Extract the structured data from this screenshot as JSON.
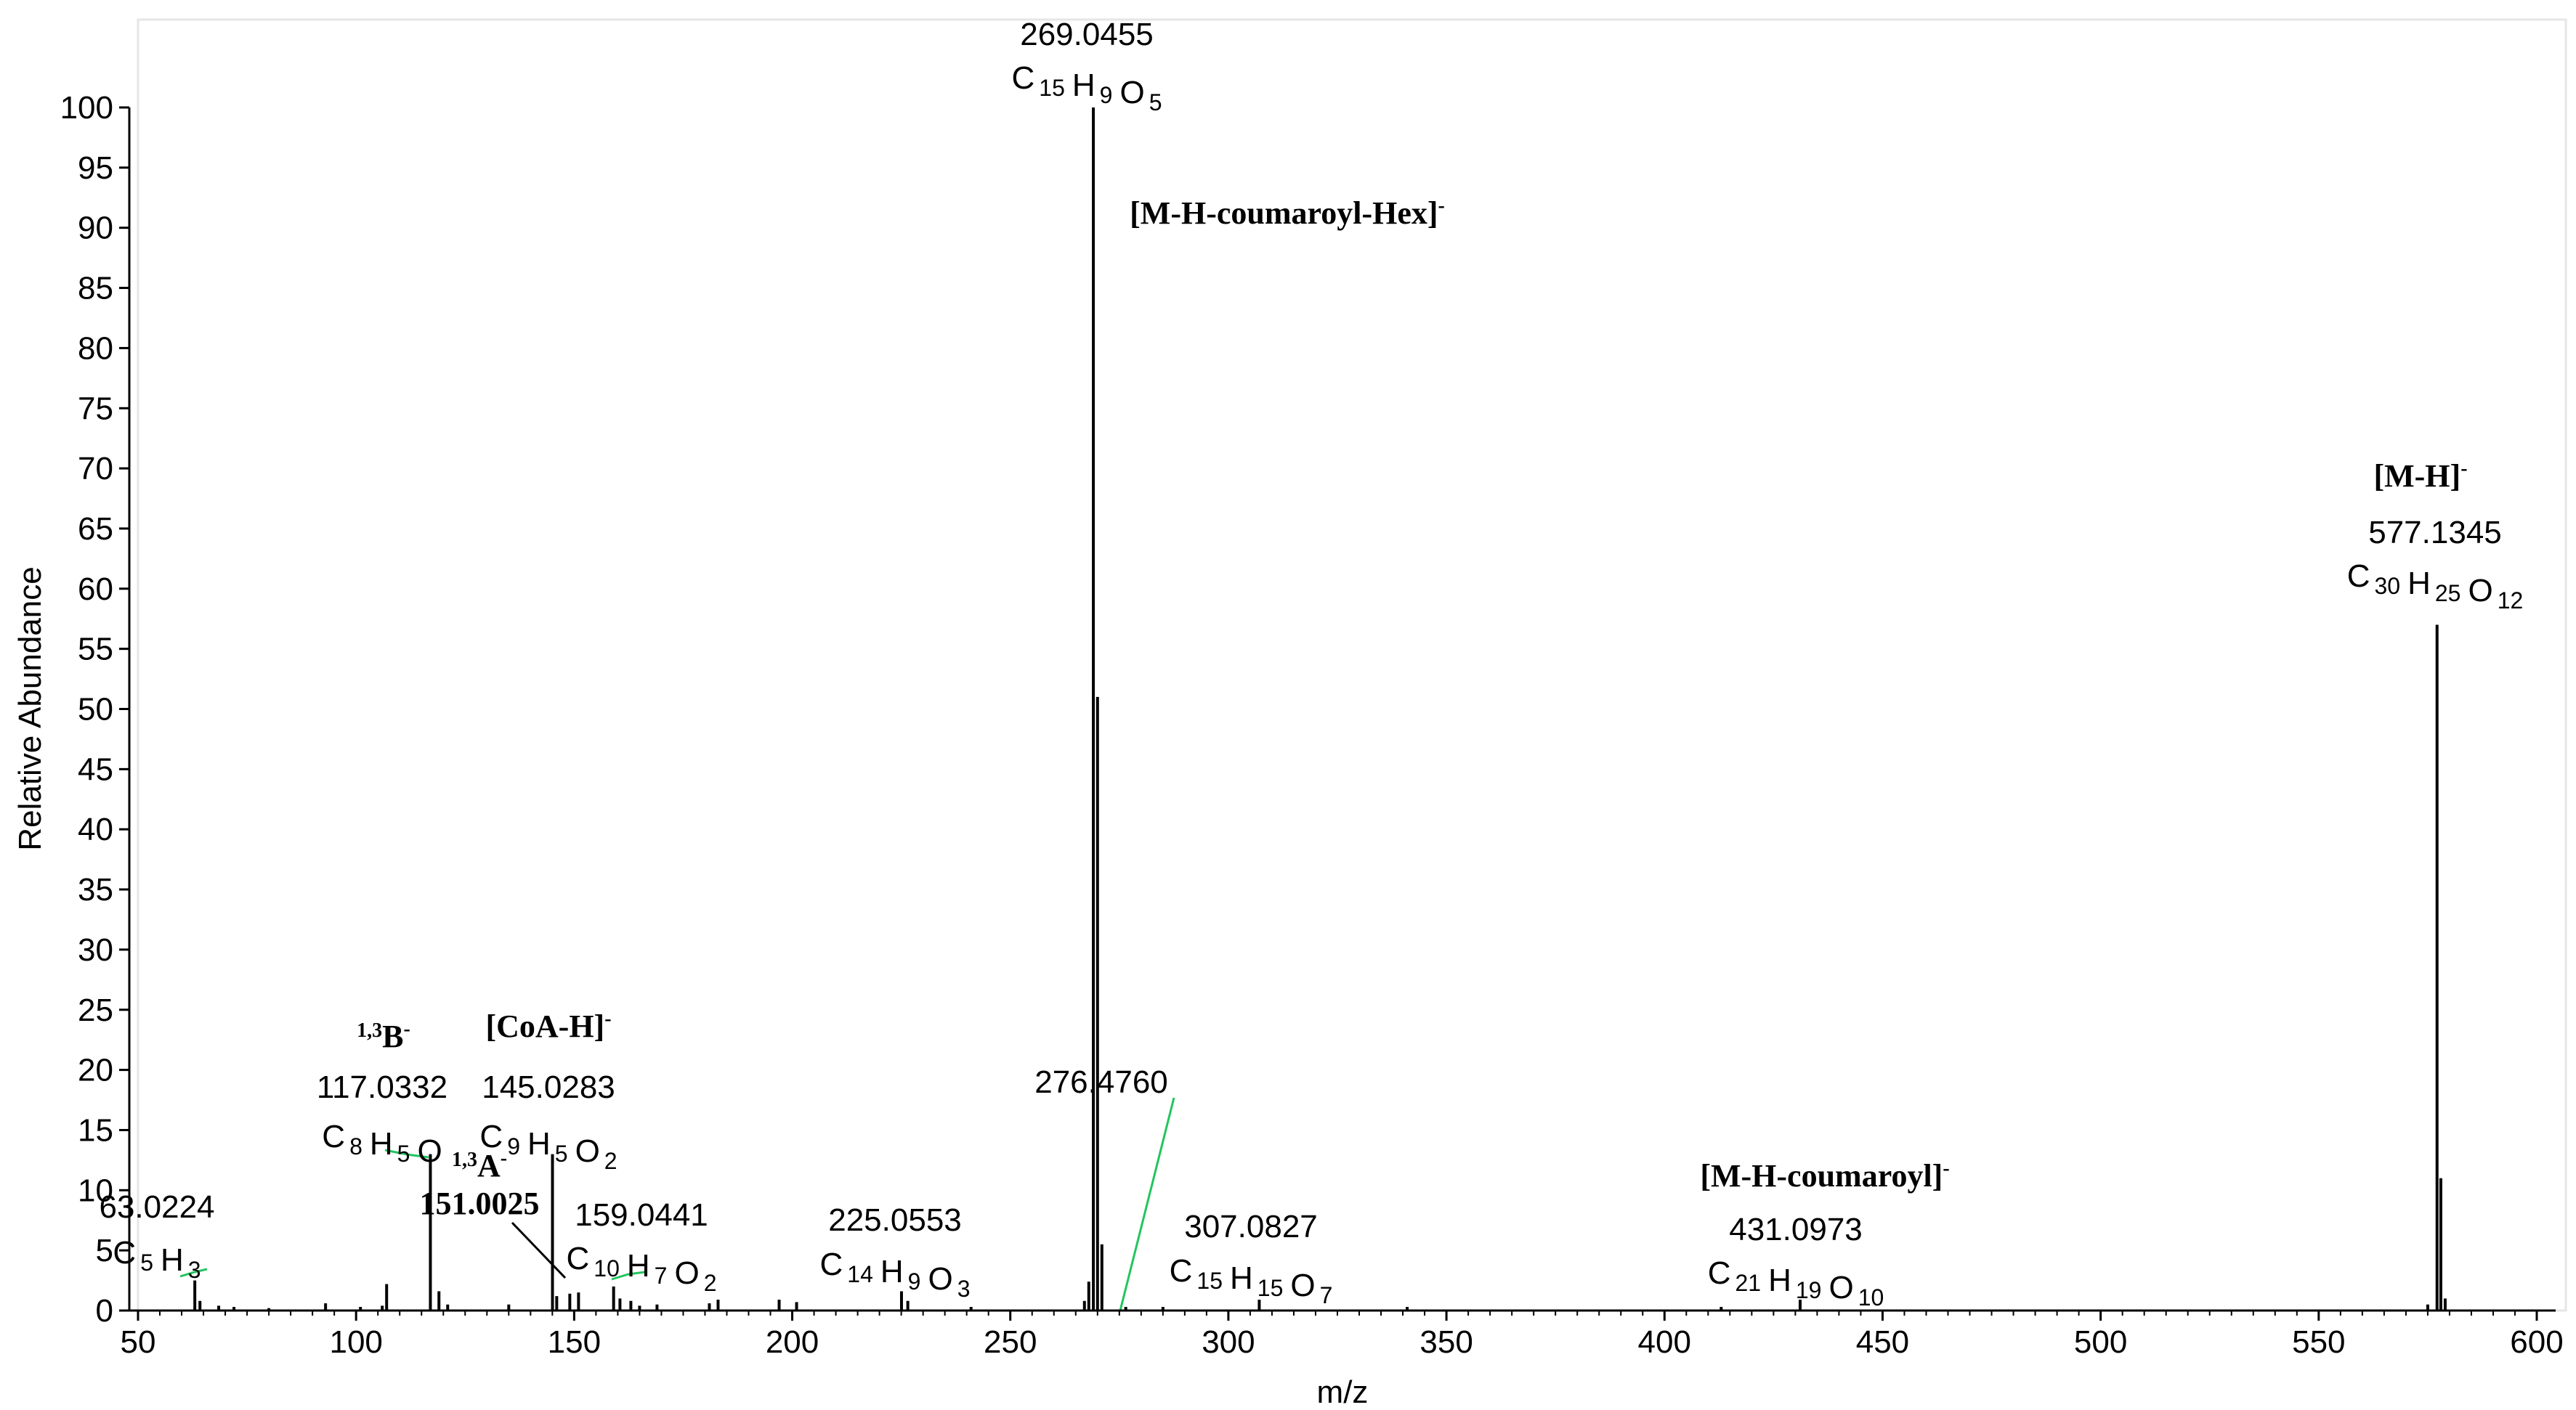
{
  "chart_data": {
    "type": "bar",
    "xlabel": "m/z",
    "ylabel": "Relative Abundance",
    "xlim": [
      50,
      605
    ],
    "ylim": [
      0,
      100
    ],
    "xticks": [
      50,
      100,
      150,
      200,
      250,
      300,
      350,
      400,
      450,
      500,
      550,
      600
    ],
    "yticks": [
      0,
      5,
      10,
      15,
      20,
      25,
      30,
      35,
      40,
      45,
      50,
      55,
      60,
      65,
      70,
      75,
      80,
      85,
      90,
      95,
      100
    ],
    "grid": false,
    "colors": {
      "peaks": "#000000",
      "leader_lines": "#22c55e"
    },
    "peaks": [
      {
        "mz": 63.0224,
        "abundance": 2.5
      },
      {
        "mz": 64.2,
        "abundance": 0.8
      },
      {
        "mz": 68.5,
        "abundance": 0.4
      },
      {
        "mz": 72.0,
        "abundance": 0.3
      },
      {
        "mz": 80.0,
        "abundance": 0.2
      },
      {
        "mz": 93.0,
        "abundance": 0.6
      },
      {
        "mz": 101.0,
        "abundance": 0.3
      },
      {
        "mz": 106.0,
        "abundance": 0.4
      },
      {
        "mz": 107.0,
        "abundance": 2.2
      },
      {
        "mz": 117.0332,
        "abundance": 13.0
      },
      {
        "mz": 119.0,
        "abundance": 1.6
      },
      {
        "mz": 121.0,
        "abundance": 0.5
      },
      {
        "mz": 135.0,
        "abundance": 0.5
      },
      {
        "mz": 145.0283,
        "abundance": 13.0
      },
      {
        "mz": 146.0,
        "abundance": 1.2
      },
      {
        "mz": 149.0,
        "abundance": 1.4
      },
      {
        "mz": 151.0025,
        "abundance": 1.5
      },
      {
        "mz": 159.0441,
        "abundance": 2.0
      },
      {
        "mz": 160.5,
        "abundance": 1.0
      },
      {
        "mz": 163.0,
        "abundance": 0.8
      },
      {
        "mz": 165.0,
        "abundance": 0.4
      },
      {
        "mz": 169.0,
        "abundance": 0.5
      },
      {
        "mz": 181.0,
        "abundance": 0.6
      },
      {
        "mz": 183.0,
        "abundance": 0.9
      },
      {
        "mz": 197.0,
        "abundance": 0.9
      },
      {
        "mz": 201.0,
        "abundance": 0.7
      },
      {
        "mz": 225.0553,
        "abundance": 1.6
      },
      {
        "mz": 226.5,
        "abundance": 0.8
      },
      {
        "mz": 241.0,
        "abundance": 0.3
      },
      {
        "mz": 267.0,
        "abundance": 0.8
      },
      {
        "mz": 268.0,
        "abundance": 2.4
      },
      {
        "mz": 269.0455,
        "abundance": 100.0
      },
      {
        "mz": 270.0,
        "abundance": 51.0
      },
      {
        "mz": 271.0,
        "abundance": 5.5
      },
      {
        "mz": 276.476,
        "abundance": 0.3
      },
      {
        "mz": 285.0,
        "abundance": 0.3
      },
      {
        "mz": 307.0827,
        "abundance": 0.9
      },
      {
        "mz": 341.0,
        "abundance": 0.3
      },
      {
        "mz": 413.0,
        "abundance": 0.3
      },
      {
        "mz": 431.0973,
        "abundance": 0.9
      },
      {
        "mz": 575.0,
        "abundance": 0.5
      },
      {
        "mz": 577.1345,
        "abundance": 57.0
      },
      {
        "mz": 578.0,
        "abundance": 11.0
      },
      {
        "mz": 579.0,
        "abundance": 1.0
      }
    ],
    "annotations": [
      {
        "mz_text": "63.0224",
        "formula": [
          [
            "C",
            "5"
          ],
          [
            "H",
            "3"
          ]
        ],
        "ion": null
      },
      {
        "mz_text": "117.0332",
        "formula": [
          [
            "C",
            "8"
          ],
          [
            "H",
            "5"
          ],
          [
            "O",
            ""
          ]
        ],
        "ion": {
          "sup": "1,3",
          "text": "B",
          "charge": "-"
        }
      },
      {
        "mz_text": "145.0283",
        "formula": [
          [
            "C",
            "9"
          ],
          [
            "H",
            "5"
          ],
          [
            "O",
            "2"
          ]
        ],
        "ion": {
          "sup": "",
          "text": "[CoA-H]",
          "charge": "-"
        }
      },
      {
        "mz_text": "151.0025",
        "formula": [],
        "ion": {
          "sup": "1,3",
          "text": "A",
          "charge": "-"
        }
      },
      {
        "mz_text": "159.0441",
        "formula": [
          [
            "C",
            "10"
          ],
          [
            "H",
            "7"
          ],
          [
            "O",
            "2"
          ]
        ],
        "ion": null
      },
      {
        "mz_text": "225.0553",
        "formula": [
          [
            "C",
            "14"
          ],
          [
            "H",
            "9"
          ],
          [
            "O",
            "3"
          ]
        ],
        "ion": null
      },
      {
        "mz_text": "269.0455",
        "formula": [
          [
            "C",
            "15"
          ],
          [
            "H",
            "9"
          ],
          [
            "O",
            "5"
          ]
        ],
        "ion": {
          "sup": "",
          "text": "[M-H-coumaroyl-Hex]",
          "charge": "-"
        }
      },
      {
        "mz_text": "276.4760",
        "formula": [],
        "ion": null
      },
      {
        "mz_text": "307.0827",
        "formula": [
          [
            "C",
            "15"
          ],
          [
            "H",
            "15"
          ],
          [
            "O",
            "7"
          ]
        ],
        "ion": null
      },
      {
        "mz_text": "431.0973",
        "formula": [
          [
            "C",
            "21"
          ],
          [
            "H",
            "19"
          ],
          [
            "O",
            "10"
          ]
        ],
        "ion": {
          "sup": "",
          "text": "[M-H-coumaroyl]",
          "charge": "-"
        }
      },
      {
        "mz_text": "577.1345",
        "formula": [
          [
            "C",
            "30"
          ],
          [
            "H",
            "25"
          ],
          [
            "O",
            "12"
          ]
        ],
        "ion": {
          "sup": "",
          "text": "[M-H]",
          "charge": "-"
        }
      }
    ]
  }
}
